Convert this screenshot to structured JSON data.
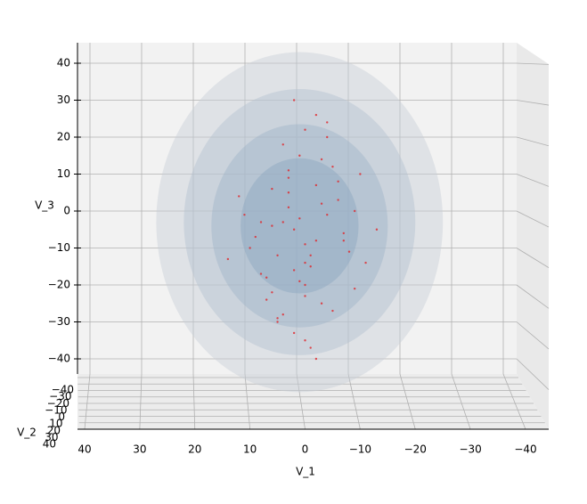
{
  "chart_data": {
    "type": "scatter3d",
    "x_label": "V_1",
    "y_label": "V_3",
    "z_label": "V_2",
    "xlim": [
      40,
      -40
    ],
    "xticks": [
      40,
      30,
      20,
      10,
      0,
      {
        "value": -10,
        "label": "−10"
      },
      {
        "value": -20,
        "label": "−20"
      },
      {
        "value": -30,
        "label": "−30"
      },
      {
        "value": -40,
        "label": "−40"
      }
    ],
    "ylim": [
      -40,
      40
    ],
    "yticks": [
      40,
      30,
      20,
      10,
      0,
      {
        "value": -10,
        "label": "−10"
      },
      {
        "value": -20,
        "label": "−20"
      },
      {
        "value": -30,
        "label": "−30"
      },
      {
        "value": -40,
        "label": "−40"
      }
    ],
    "zlim": [
      -40,
      40
    ],
    "zticks": [
      {
        "value": -40,
        "label": "−40"
      },
      {
        "value": -30,
        "label": "−30"
      },
      {
        "value": -20,
        "label": "−20"
      },
      {
        "value": -10,
        "label": "−10"
      },
      0,
      10,
      20,
      30,
      40
    ],
    "grid": true,
    "point_color": "#e0262a",
    "x": [
      2,
      -3,
      5,
      0,
      -6,
      8,
      1,
      -2,
      4,
      -9,
      3,
      -1,
      6,
      -4,
      10,
      0,
      -7,
      2,
      -5,
      7,
      1,
      -3,
      12,
      -11,
      4,
      0,
      -2,
      5,
      -8,
      3,
      -1,
      9,
      -6,
      2,
      -4,
      6,
      0,
      -10,
      14,
      -2,
      1,
      3,
      -5,
      7,
      -3,
      0,
      11,
      -7,
      4,
      -1,
      2,
      -13,
      8,
      -4,
      5,
      0,
      -2,
      6,
      -9,
      3
    ],
    "y": [
      -5,
      2,
      -12,
      -20,
      8,
      -3,
      15,
      -8,
      -28,
      0,
      5,
      -15,
      -22,
      -1,
      -10,
      22,
      -6,
      -33,
      12,
      -18,
      -2,
      -25,
      4,
      -14,
      18,
      -9,
      26,
      -30,
      -11,
      9,
      -37,
      -7,
      3,
      -16,
      20,
      -4,
      -23,
      10,
      -13,
      7,
      -19,
      1,
      -27,
      -24,
      14,
      -35,
      -1,
      -8,
      -3,
      -12,
      30,
      -5,
      -17,
      24,
      -29,
      -14,
      -40,
      6,
      -21,
      11
    ],
    "ellipsoids": [
      {
        "cx": 1,
        "cy": -3,
        "rx": 26,
        "ry": 46,
        "color": "#c8ced6"
      },
      {
        "cx": 1,
        "cy": -3,
        "rx": 21,
        "ry": 36,
        "color": "#b4c2d0"
      },
      {
        "cx": 1,
        "cy": -4,
        "rx": 16,
        "ry": 27.5,
        "color": "#9fb4c8"
      },
      {
        "cx": 1,
        "cy": -4,
        "rx": 10.7,
        "ry": 18.3,
        "color": "#8ca6bf"
      }
    ]
  }
}
